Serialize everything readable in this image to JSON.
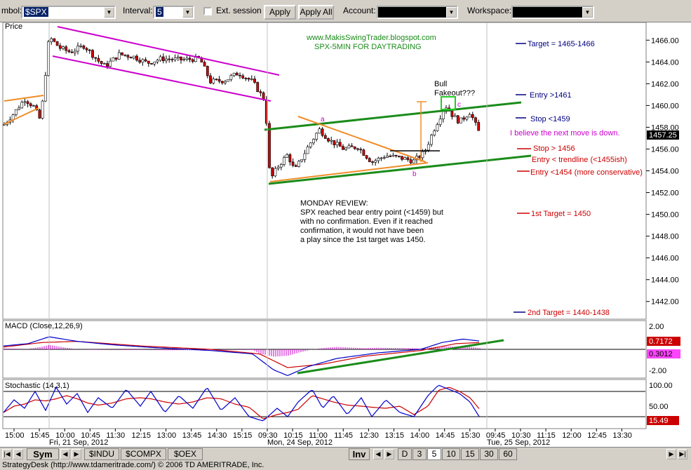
{
  "toolbar": {
    "symbol_label": "mbol:",
    "symbol_value": "$SPX",
    "interval_label": "Interval:",
    "interval_value": "5",
    "ext_session_label": "Ext. session",
    "apply_label": "Apply",
    "apply_all_label": "Apply All",
    "account_label": "Account:",
    "workspace_label": "Workspace:"
  },
  "tabs": {
    "sym": "Sym",
    "symbols": [
      "$INDU",
      "$COMPX",
      "$OEX"
    ],
    "inv": "Inv",
    "intervals": [
      "D",
      "3",
      "5",
      "10",
      "15",
      "30",
      "60"
    ]
  },
  "status": {
    "text": "StrategyDesk (http://www.tdameritrade.com/) © 2006 TD AMERITRADE, Inc."
  },
  "colors": {
    "candle_up": "#ffffff",
    "candle_down": "#cc0000",
    "channel": "#cc00cc",
    "green_line": "#1a8c1a",
    "orange_line": "#f08c28",
    "price_label_bg": "#000000",
    "macd_line": "#0000cc",
    "signal_line": "#cc0000",
    "stoch_k": "#0000cc",
    "stoch_d": "#cc0000"
  },
  "chart_data": {
    "type": "candlestick",
    "symbol": "$SPX",
    "interval": "5",
    "panels": {
      "price": {
        "title": "Price",
        "ylim": [
          1440.5,
          1467.5
        ],
        "yticks": [
          1442,
          1444,
          1446,
          1448,
          1450,
          1452,
          1454,
          1456,
          1458,
          1460,
          1462,
          1464,
          1466
        ],
        "last_price": "1457.25"
      },
      "macd": {
        "title": "MACD (Close,12,26,9)",
        "ylim": [
          -2.4,
          2.4
        ],
        "ytick_labels": [
          "2.00",
          "-2.00"
        ],
        "macd_value": "0.7172",
        "hist_value": "0.3012"
      },
      "stochastic": {
        "title": "Stochastic (14,3,1)",
        "ylim": [
          -5,
          105
        ],
        "ytick_labels": [
          "100.00",
          "50.00"
        ],
        "value": "15.49"
      }
    },
    "x_tick_labels": [
      "15:00",
      "15:45",
      "10:00",
      "10:45",
      "11:30",
      "12:15",
      "13:00",
      "13:45",
      "14:30",
      "15:15",
      "09:30",
      "10:15",
      "11:00",
      "11:45",
      "12:30",
      "13:15",
      "14:00",
      "14:45",
      "15:30",
      "09:45",
      "10:30",
      "11:15",
      "12:00",
      "12:45",
      "13:30"
    ],
    "date_labels": [
      "Fri, 21 Sep, 2012",
      "Mon, 24 Sep, 2012",
      "Tue, 25 Sep, 2012"
    ],
    "price_anchors": [
      {
        "x": 5,
        "y": 1458.2
      },
      {
        "x": 20,
        "y": 1459.3
      },
      {
        "x": 35,
        "y": 1460.6
      },
      {
        "x": 48,
        "y": 1459.9
      },
      {
        "x": 58,
        "y": 1458.6
      },
      {
        "x": 70,
        "y": 1466.3
      },
      {
        "x": 85,
        "y": 1465.3
      },
      {
        "x": 100,
        "y": 1464.9
      },
      {
        "x": 120,
        "y": 1465.5
      },
      {
        "x": 140,
        "y": 1464.1
      },
      {
        "x": 150,
        "y": 1463.6
      },
      {
        "x": 170,
        "y": 1464.7
      },
      {
        "x": 190,
        "y": 1464.5
      },
      {
        "x": 210,
        "y": 1463.9
      },
      {
        "x": 230,
        "y": 1464.3
      },
      {
        "x": 260,
        "y": 1464.2
      },
      {
        "x": 285,
        "y": 1464.3
      },
      {
        "x": 300,
        "y": 1462.2
      },
      {
        "x": 320,
        "y": 1462.3
      },
      {
        "x": 340,
        "y": 1463.0
      },
      {
        "x": 360,
        "y": 1462.2
      },
      {
        "x": 370,
        "y": 1461.2
      },
      {
        "x": 378,
        "y": 1460.4
      },
      {
        "x": 385,
        "y": 1453.1
      },
      {
        "x": 395,
        "y": 1454.3
      },
      {
        "x": 410,
        "y": 1455.5
      },
      {
        "x": 420,
        "y": 1454.0
      },
      {
        "x": 440,
        "y": 1456.3
      },
      {
        "x": 455,
        "y": 1457.8
      },
      {
        "x": 470,
        "y": 1456.8
      },
      {
        "x": 490,
        "y": 1456.0
      },
      {
        "x": 510,
        "y": 1456.2
      },
      {
        "x": 530,
        "y": 1454.8
      },
      {
        "x": 550,
        "y": 1455.4
      },
      {
        "x": 570,
        "y": 1455.2
      },
      {
        "x": 590,
        "y": 1454.9
      },
      {
        "x": 605,
        "y": 1455.7
      },
      {
        "x": 620,
        "y": 1458.0
      },
      {
        "x": 635,
        "y": 1460.0
      },
      {
        "x": 645,
        "y": 1459.1
      },
      {
        "x": 655,
        "y": 1458.5
      },
      {
        "x": 670,
        "y": 1459.4
      },
      {
        "x": 685,
        "y": 1457.2
      }
    ],
    "macd_anchors": [
      {
        "x": 5,
        "y": 0.3
      },
      {
        "x": 40,
        "y": 0.5
      },
      {
        "x": 70,
        "y": 1.1
      },
      {
        "x": 110,
        "y": 0.7
      },
      {
        "x": 160,
        "y": 0.4
      },
      {
        "x": 220,
        "y": 0.15
      },
      {
        "x": 300,
        "y": -0.1
      },
      {
        "x": 360,
        "y": -0.4
      },
      {
        "x": 390,
        "y": -1.8
      },
      {
        "x": 410,
        "y": -2.3
      },
      {
        "x": 440,
        "y": -1.5
      },
      {
        "x": 480,
        "y": -0.8
      },
      {
        "x": 540,
        "y": -0.3
      },
      {
        "x": 600,
        "y": 0.0
      },
      {
        "x": 630,
        "y": 0.6
      },
      {
        "x": 660,
        "y": 0.9
      },
      {
        "x": 685,
        "y": 0.72
      }
    ],
    "signal_anchors": [
      {
        "x": 5,
        "y": 0.2
      },
      {
        "x": 60,
        "y": 0.6
      },
      {
        "x": 110,
        "y": 0.7
      },
      {
        "x": 200,
        "y": 0.3
      },
      {
        "x": 300,
        "y": 0.0
      },
      {
        "x": 370,
        "y": -0.4
      },
      {
        "x": 410,
        "y": -1.6
      },
      {
        "x": 460,
        "y": -1.3
      },
      {
        "x": 520,
        "y": -0.6
      },
      {
        "x": 600,
        "y": -0.1
      },
      {
        "x": 650,
        "y": 0.5
      },
      {
        "x": 685,
        "y": 0.6
      }
    ],
    "stoch_anchors": [
      {
        "x": 5,
        "y": 30
      },
      {
        "x": 20,
        "y": 60
      },
      {
        "x": 35,
        "y": 40
      },
      {
        "x": 50,
        "y": 80
      },
      {
        "x": 65,
        "y": 35
      },
      {
        "x": 80,
        "y": 90
      },
      {
        "x": 95,
        "y": 50
      },
      {
        "x": 110,
        "y": 75
      },
      {
        "x": 125,
        "y": 30
      },
      {
        "x": 140,
        "y": 65
      },
      {
        "x": 160,
        "y": 40
      },
      {
        "x": 180,
        "y": 85
      },
      {
        "x": 200,
        "y": 45
      },
      {
        "x": 215,
        "y": 80
      },
      {
        "x": 235,
        "y": 30
      },
      {
        "x": 255,
        "y": 70
      },
      {
        "x": 275,
        "y": 40
      },
      {
        "x": 295,
        "y": 90
      },
      {
        "x": 315,
        "y": 35
      },
      {
        "x": 335,
        "y": 65
      },
      {
        "x": 355,
        "y": 20
      },
      {
        "x": 375,
        "y": 10
      },
      {
        "x": 395,
        "y": 40
      },
      {
        "x": 410,
        "y": 20
      },
      {
        "x": 425,
        "y": 55
      },
      {
        "x": 445,
        "y": 85
      },
      {
        "x": 460,
        "y": 40
      },
      {
        "x": 475,
        "y": 70
      },
      {
        "x": 495,
        "y": 25
      },
      {
        "x": 515,
        "y": 65
      },
      {
        "x": 530,
        "y": 20
      },
      {
        "x": 550,
        "y": 60
      },
      {
        "x": 570,
        "y": 30
      },
      {
        "x": 590,
        "y": 20
      },
      {
        "x": 610,
        "y": 70
      },
      {
        "x": 625,
        "y": 95
      },
      {
        "x": 640,
        "y": 85
      },
      {
        "x": 655,
        "y": 75
      },
      {
        "x": 670,
        "y": 55
      },
      {
        "x": 685,
        "y": 15
      }
    ]
  },
  "annotations": {
    "site": "www.MakisSwingTrader.blogspot.com",
    "subtitle": "SPX-5MIN FOR DAYTRADING",
    "bull_fakeout": [
      "Bull",
      "Fakeout???"
    ],
    "pt_a": "a",
    "pt_b": "b",
    "pt_c": "c",
    "review": [
      "MONDAY REVIEW:",
      "SPX reached bear entry point (<1459) but",
      "with no confirmation. Even if it reached",
      "confirmation, it would not have been",
      "a play since the 1st target was 1450."
    ],
    "target_top": "Target = 1465-1466",
    "entry_long": "Entry >1461",
    "stop_long": "Stop <1459",
    "belief": "I believe the next move is down.",
    "stop_short": "Stop > 1456",
    "entry_trend": "Entry < trendline (<1455ish)",
    "entry_cons": "Entry <1454 (more conservative)",
    "target1": "1st Target = 1450",
    "target2": "2nd Target = 1440-1438"
  }
}
